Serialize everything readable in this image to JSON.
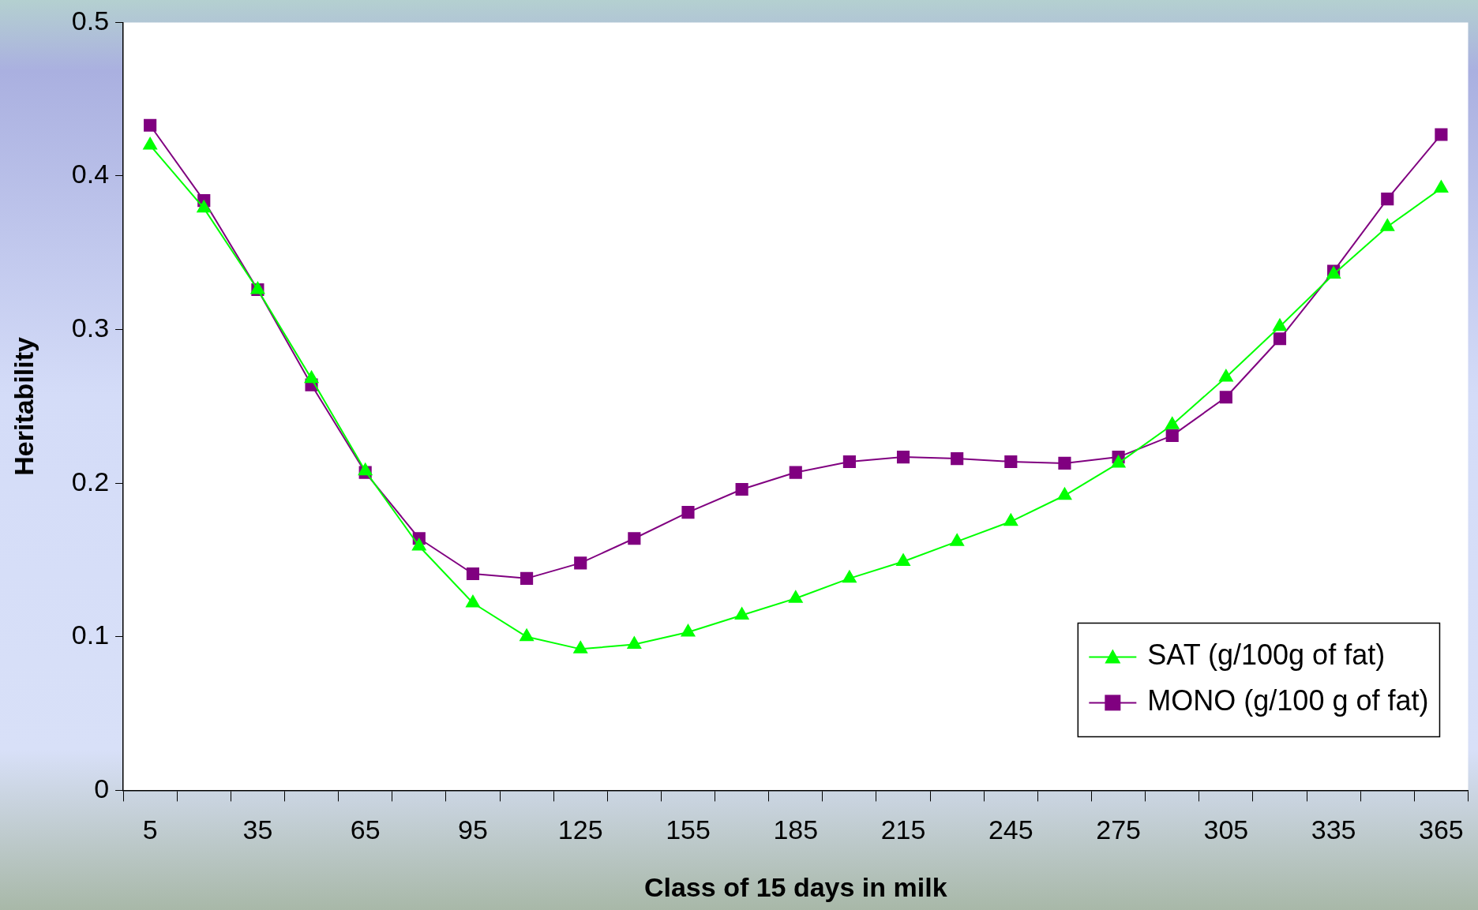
{
  "chart_data": {
    "type": "line",
    "xlabel": "Class of 15 days in milk",
    "ylabel": "Heritability",
    "categories": [
      "5",
      null,
      "35",
      null,
      "65",
      null,
      "95",
      null,
      "125",
      null,
      "155",
      null,
      "185",
      null,
      "215",
      null,
      "245",
      null,
      "275",
      null,
      "305",
      null,
      "335",
      null,
      "365"
    ],
    "series": [
      {
        "name": "SAT (g/100g of fat)",
        "color": "#00ff00",
        "marker": "triangle",
        "values": [
          0.42,
          0.379,
          0.326,
          0.268,
          0.208,
          0.159,
          0.122,
          0.1,
          0.092,
          0.095,
          0.103,
          0.114,
          0.125,
          0.138,
          0.149,
          0.162,
          0.175,
          0.192,
          0.213,
          0.238,
          0.269,
          0.302,
          0.336,
          0.367,
          0.392
        ]
      },
      {
        "name": "MONO (g/100 g of fat)",
        "color": "#800080",
        "marker": "square",
        "values": [
          0.433,
          0.384,
          0.326,
          0.264,
          0.207,
          0.164,
          0.141,
          0.138,
          0.148,
          0.164,
          0.181,
          0.196,
          0.207,
          0.214,
          0.217,
          0.216,
          0.214,
          0.213,
          0.217,
          0.231,
          0.256,
          0.294,
          0.338,
          0.385,
          0.427
        ]
      }
    ],
    "ylim": [
      0,
      0.5
    ],
    "yticks": [
      0,
      0.1,
      0.2,
      0.3,
      0.4,
      0.5
    ],
    "grid": false,
    "legend": "bottom right",
    "line_style": "solid"
  }
}
